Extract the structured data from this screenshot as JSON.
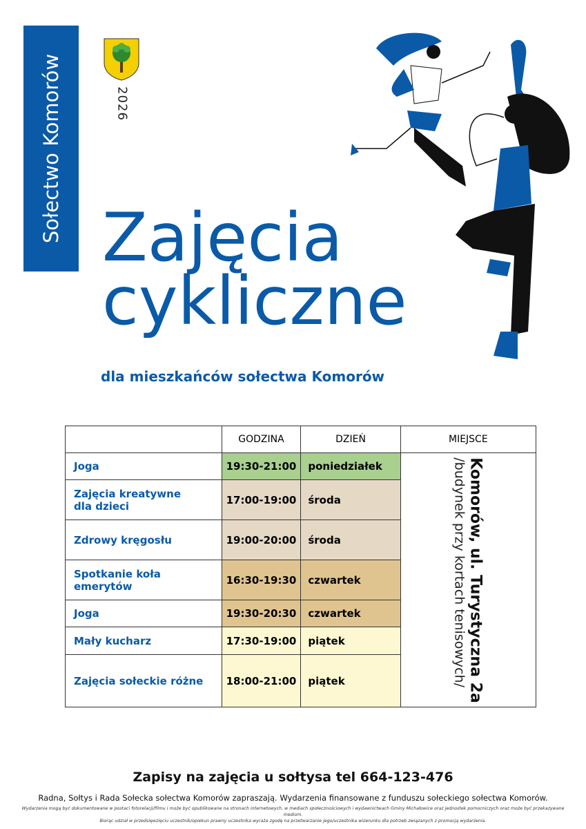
{
  "sidebar": {
    "label": "Sołectwo Komorów"
  },
  "year": "2026",
  "title": {
    "line1": "Zajęcia",
    "line2": "cykliczne"
  },
  "subtitle": "dla mieszkańców sołectwa Komorów",
  "colors": {
    "brand": "#0a5aa8",
    "green": "#a9d08e",
    "beige": "#e5d9c6",
    "tan": "#e0c490",
    "yellow": "#fdf8d2"
  },
  "table": {
    "headers": [
      "",
      "GODZINA",
      "DZIEŃ",
      "MIEJSCE"
    ],
    "rows": [
      {
        "name": "Joga",
        "time": "19:30-21:00",
        "day": "poniedziałek"
      },
      {
        "name": "Zajęcia kreatywne dla dzieci",
        "time": "17:00-19:00",
        "day": "środa"
      },
      {
        "name": "Zdrowy kręgosłu",
        "time": "19:00-20:00",
        "day": "środa"
      },
      {
        "name": "Spotkanie koła emerytów",
        "time": "16:30-19:30",
        "day": "czwartek"
      },
      {
        "name": "Joga",
        "time": "19:30-20:30",
        "day": "czwartek"
      },
      {
        "name": "Mały kucharz",
        "time": "17:30-19:00",
        "day": "piątek"
      },
      {
        "name": "Zajęcia sołeckie różne",
        "time": "18:00-21:00",
        "day": "piątek"
      }
    ],
    "place": {
      "line1": "Komorów, ul. Turystyczna 2a",
      "line2": "/budynek przy kortach tenisowych/"
    }
  },
  "footer": {
    "signup": "Zapisy na zajęcia u sołtysa tel 664-123-476",
    "info": "Radna, Sołtys i Rada Sołecka sołectwa Komorów zapraszają. Wydarzenia finansowane z funduszu sołeckiego sołectwa Komorów.",
    "disclaimer1": "Wydarzenia mogą być dokumentowane w postaci fotorelacji/filmu i może być opublikowane na stronach internetowych, w mediach społecznościowych i wydawnictwach Gminy Michałowice oraz jednostek pomocniczych oraz może być przekazywane mediom.",
    "disclaimer2": "Biorąc udział w przedsięwzięciu uczestnik/opiekun prawny uczestnika wyraża zgodę na przetwarzanie jego/uczestnika wizerunku dla potrzeb związanych z promocją wydarzenia."
  }
}
